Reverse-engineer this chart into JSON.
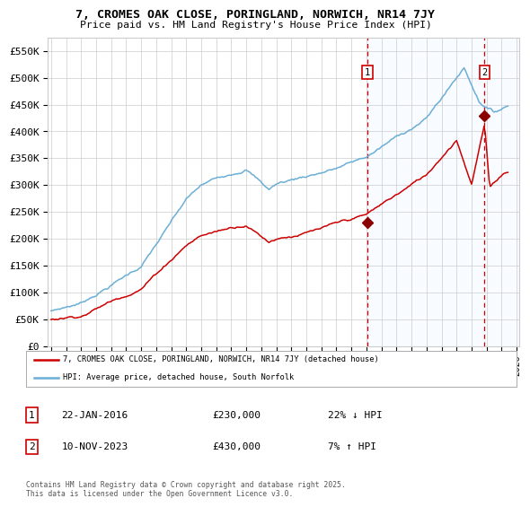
{
  "title1": "7, CROMES OAK CLOSE, PORINGLAND, NORWICH, NR14 7JY",
  "title2": "Price paid vs. HM Land Registry's House Price Index (HPI)",
  "ylim": [
    0,
    575000
  ],
  "yticks": [
    0,
    50000,
    100000,
    150000,
    200000,
    250000,
    300000,
    350000,
    400000,
    450000,
    500000,
    550000
  ],
  "ytick_labels": [
    "£0",
    "£50K",
    "£100K",
    "£150K",
    "£200K",
    "£250K",
    "£300K",
    "£350K",
    "£400K",
    "£450K",
    "£500K",
    "£550K"
  ],
  "xlim_start": 1994.8,
  "xlim_end": 2026.2,
  "hpi_color": "#6baed6",
  "price_color": "#cc0000",
  "sale1_date": 2016.055,
  "sale1_price": 230000,
  "sale2_date": 2023.86,
  "sale2_price": 430000,
  "marker_color": "#8b0000",
  "dashed_line_color": "#cc0000",
  "shade_color": "#ddeeff",
  "legend_line1": "7, CROMES OAK CLOSE, PORINGLAND, NORWICH, NR14 7JY (detached house)",
  "legend_line2": "HPI: Average price, detached house, South Norfolk",
  "note1_date": "22-JAN-2016",
  "note1_price": "£230,000",
  "note1_hpi": "22% ↓ HPI",
  "note2_date": "10-NOV-2023",
  "note2_price": "£430,000",
  "note2_hpi": "7% ↑ HPI",
  "footnote": "Contains HM Land Registry data © Crown copyright and database right 2025.\nThis data is licensed under the Open Government Licence v3.0.",
  "background_color": "#ffffff",
  "grid_color": "#cccccc",
  "shade_start": 2016.055
}
